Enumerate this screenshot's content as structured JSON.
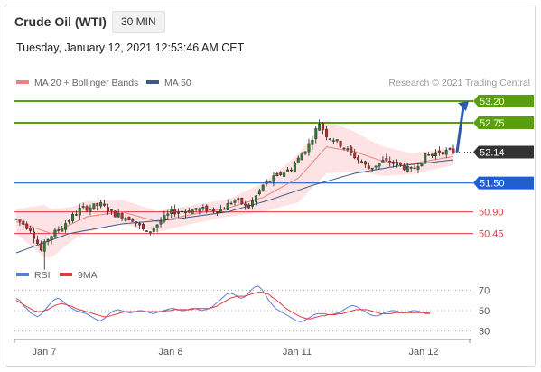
{
  "header": {
    "instrument": "Crude Oil (WTI)",
    "timeframe": "30 MIN",
    "timestamp": "Tuesday, January 12, 2021 12:53:46 AM CET",
    "copyright": "Research © 2021 Trading Central"
  },
  "colors": {
    "resistance": "#5aa00e",
    "current": "#333333",
    "pivot": "#1f5fd1",
    "support": "#e0393e",
    "ma20": "#f08080",
    "bollinger_fill": "#fde3e3",
    "ma50": "#3a5a8c",
    "candle_up": "#2e7d32",
    "candle_down": "#c62828",
    "rsi": "#5b7fd6",
    "rsi_ma": "#e0393e",
    "arrow": "#2b5aa8"
  },
  "chart_data": [
    {
      "type": "line",
      "title": "Crude Oil (WTI) 30 MIN",
      "x_tick_labels": [
        "Jan 7",
        "Jan 8",
        "Jan 11",
        "Jan 12"
      ],
      "legend": [
        {
          "name": "MA 20 + Bollinger Bands",
          "color": "#f08080"
        },
        {
          "name": "MA 50",
          "color": "#3a5a8c"
        }
      ],
      "ylim": [
        49.6,
        53.5
      ],
      "levels": [
        {
          "value": 53.2,
          "label": "53.20",
          "kind": "resistance"
        },
        {
          "value": 52.75,
          "label": "52.75",
          "kind": "resistance"
        },
        {
          "value": 52.14,
          "label": "52.14",
          "kind": "current"
        },
        {
          "value": 51.5,
          "label": "51.50",
          "kind": "pivot"
        },
        {
          "value": 50.9,
          "label": "50.90",
          "kind": "support"
        },
        {
          "value": 50.45,
          "label": "50.45",
          "kind": "support"
        }
      ],
      "price_path": [
        {
          "i": 0,
          "price": 50.75
        },
        {
          "i": 4,
          "price": 50.55
        },
        {
          "i": 7,
          "price": 50.1
        },
        {
          "i": 9,
          "price": 50.35
        },
        {
          "i": 13,
          "price": 50.6
        },
        {
          "i": 18,
          "price": 50.95
        },
        {
          "i": 24,
          "price": 51.05
        },
        {
          "i": 28,
          "price": 50.85
        },
        {
          "i": 33,
          "price": 50.75
        },
        {
          "i": 37,
          "price": 50.45
        },
        {
          "i": 44,
          "price": 50.9
        },
        {
          "i": 52,
          "price": 50.95
        },
        {
          "i": 58,
          "price": 50.95
        },
        {
          "i": 62,
          "price": 51.15
        },
        {
          "i": 66,
          "price": 51.0
        },
        {
          "i": 70,
          "price": 51.45
        },
        {
          "i": 74,
          "price": 51.65
        },
        {
          "i": 78,
          "price": 51.8
        },
        {
          "i": 83,
          "price": 52.3
        },
        {
          "i": 86,
          "price": 52.75
        },
        {
          "i": 88,
          "price": 52.5
        },
        {
          "i": 92,
          "price": 52.3
        },
        {
          "i": 96,
          "price": 52.05
        },
        {
          "i": 100,
          "price": 51.8
        },
        {
          "i": 104,
          "price": 51.95
        },
        {
          "i": 108,
          "price": 51.9
        },
        {
          "i": 112,
          "price": 51.75
        },
        {
          "i": 116,
          "price": 52.05
        },
        {
          "i": 120,
          "price": 52.15
        },
        {
          "i": 124,
          "price": 52.15
        }
      ],
      "ma20_path": [
        {
          "i": 0,
          "price": 50.7
        },
        {
          "i": 10,
          "price": 50.45
        },
        {
          "i": 20,
          "price": 50.8
        },
        {
          "i": 30,
          "price": 50.9
        },
        {
          "i": 40,
          "price": 50.7
        },
        {
          "i": 50,
          "price": 50.85
        },
        {
          "i": 60,
          "price": 50.98
        },
        {
          "i": 70,
          "price": 51.2
        },
        {
          "i": 80,
          "price": 51.6
        },
        {
          "i": 88,
          "price": 52.25
        },
        {
          "i": 96,
          "price": 52.15
        },
        {
          "i": 104,
          "price": 51.95
        },
        {
          "i": 112,
          "price": 51.9
        },
        {
          "i": 120,
          "price": 52.0
        },
        {
          "i": 124,
          "price": 52.05
        }
      ],
      "bollinger_width": [
        {
          "i": 0,
          "w": 0.25
        },
        {
          "i": 8,
          "w": 0.55
        },
        {
          "i": 16,
          "w": 0.35
        },
        {
          "i": 30,
          "w": 0.25
        },
        {
          "i": 45,
          "w": 0.2
        },
        {
          "i": 60,
          "w": 0.18
        },
        {
          "i": 70,
          "w": 0.3
        },
        {
          "i": 80,
          "w": 0.5
        },
        {
          "i": 88,
          "w": 0.55
        },
        {
          "i": 100,
          "w": 0.35
        },
        {
          "i": 112,
          "w": 0.22
        },
        {
          "i": 124,
          "w": 0.18
        }
      ],
      "ma50_path": [
        {
          "i": 0,
          "price": 50.05
        },
        {
          "i": 15,
          "price": 50.45
        },
        {
          "i": 30,
          "price": 50.65
        },
        {
          "i": 45,
          "price": 50.75
        },
        {
          "i": 60,
          "price": 50.9
        },
        {
          "i": 72,
          "price": 51.15
        },
        {
          "i": 84,
          "price": 51.45
        },
        {
          "i": 96,
          "price": 51.7
        },
        {
          "i": 108,
          "price": 51.85
        },
        {
          "i": 124,
          "price": 51.98
        }
      ],
      "forecast": {
        "from": 52.14,
        "to": 53.2
      }
    },
    {
      "type": "line",
      "title": "RSI",
      "legend": [
        {
          "name": "RSI",
          "color": "#5b7fd6"
        },
        {
          "name": "9MA",
          "color": "#e0393e"
        }
      ],
      "ylim": [
        20,
        80
      ],
      "y_ticks": [
        {
          "value": 70,
          "label": "70"
        },
        {
          "value": 50,
          "label": "50"
        },
        {
          "value": 30,
          "label": "30"
        }
      ],
      "rsi": [
        62,
        60,
        55,
        52,
        48,
        46,
        44,
        46,
        50,
        54,
        58,
        61,
        62,
        60,
        57,
        54,
        52,
        50,
        49,
        48,
        47,
        45,
        43,
        41,
        40,
        42,
        45,
        48,
        50,
        51,
        50,
        49,
        48,
        48,
        49,
        50,
        50,
        49,
        48,
        47,
        48,
        49,
        50,
        51,
        52,
        52,
        51,
        50,
        50,
        51,
        52,
        52,
        51,
        50,
        51,
        52,
        54,
        57,
        60,
        63,
        66,
        67,
        66,
        64,
        62,
        63,
        66,
        70,
        73,
        74,
        71,
        66,
        60,
        56,
        52,
        50,
        48,
        46,
        44,
        42,
        40,
        39,
        40,
        42,
        44,
        46,
        47,
        47,
        47,
        46,
        46,
        47,
        48,
        50,
        52,
        54,
        55,
        54,
        52,
        50,
        48,
        46,
        45,
        45,
        46,
        48,
        49,
        50,
        50,
        49,
        48,
        48,
        49,
        50,
        50,
        49,
        48,
        47,
        47
      ],
      "rsi_ma": [
        60,
        58,
        56,
        54,
        52,
        50,
        49,
        49,
        50,
        51,
        53,
        55,
        56,
        57,
        56,
        55,
        54,
        52,
        51,
        50,
        49,
        48,
        47,
        46,
        45,
        44,
        44,
        45,
        46,
        47,
        48,
        49,
        49,
        49,
        49,
        49,
        49,
        49,
        49,
        49,
        49,
        49,
        49,
        50,
        50,
        51,
        51,
        51,
        51,
        51,
        51,
        52,
        52,
        52,
        52,
        52,
        53,
        54,
        56,
        58,
        60,
        62,
        63,
        64,
        64,
        64,
        65,
        66,
        67,
        68,
        68,
        67,
        66,
        63,
        61,
        58,
        55,
        52,
        50,
        48,
        46,
        44,
        43,
        42,
        42,
        43,
        44,
        45,
        45,
        46,
        46,
        46,
        47,
        47,
        48,
        49,
        50,
        51,
        51,
        51,
        51,
        50,
        49,
        48,
        47,
        47,
        47,
        47,
        48,
        48,
        48,
        48,
        48,
        48,
        48,
        48,
        48,
        48,
        48
      ]
    }
  ]
}
